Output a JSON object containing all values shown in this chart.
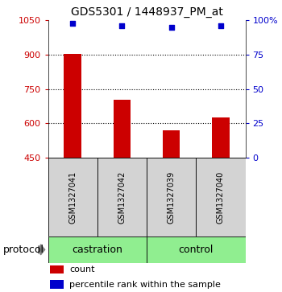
{
  "title": "GDS5301 / 1448937_PM_at",
  "samples": [
    "GSM1327041",
    "GSM1327042",
    "GSM1327039",
    "GSM1327040"
  ],
  "bar_values": [
    905,
    705,
    570,
    625
  ],
  "percentile_values": [
    98,
    96,
    95,
    96
  ],
  "bar_color": "#cc0000",
  "dot_color": "#0000cc",
  "ylim_left": [
    450,
    1050
  ],
  "yticks_left": [
    450,
    600,
    750,
    900,
    1050
  ],
  "ylim_right": [
    0,
    100
  ],
  "yticks_right": [
    0,
    25,
    50,
    75,
    100
  ],
  "ytick_labels_right": [
    "0",
    "25",
    "50",
    "75",
    "100%"
  ],
  "groups": [
    {
      "label": "castration",
      "samples": [
        0,
        1
      ],
      "color": "#90ee90"
    },
    {
      "label": "control",
      "samples": [
        2,
        3
      ],
      "color": "#90ee90"
    }
  ],
  "protocol_label": "protocol",
  "legend_items": [
    {
      "color": "#cc0000",
      "label": "count"
    },
    {
      "color": "#0000cc",
      "label": "percentile rank within the sample"
    }
  ],
  "bar_width": 0.35,
  "grid_yticks": [
    600,
    750,
    900
  ],
  "background_color": "#ffffff",
  "sample_box_color": "#d3d3d3"
}
